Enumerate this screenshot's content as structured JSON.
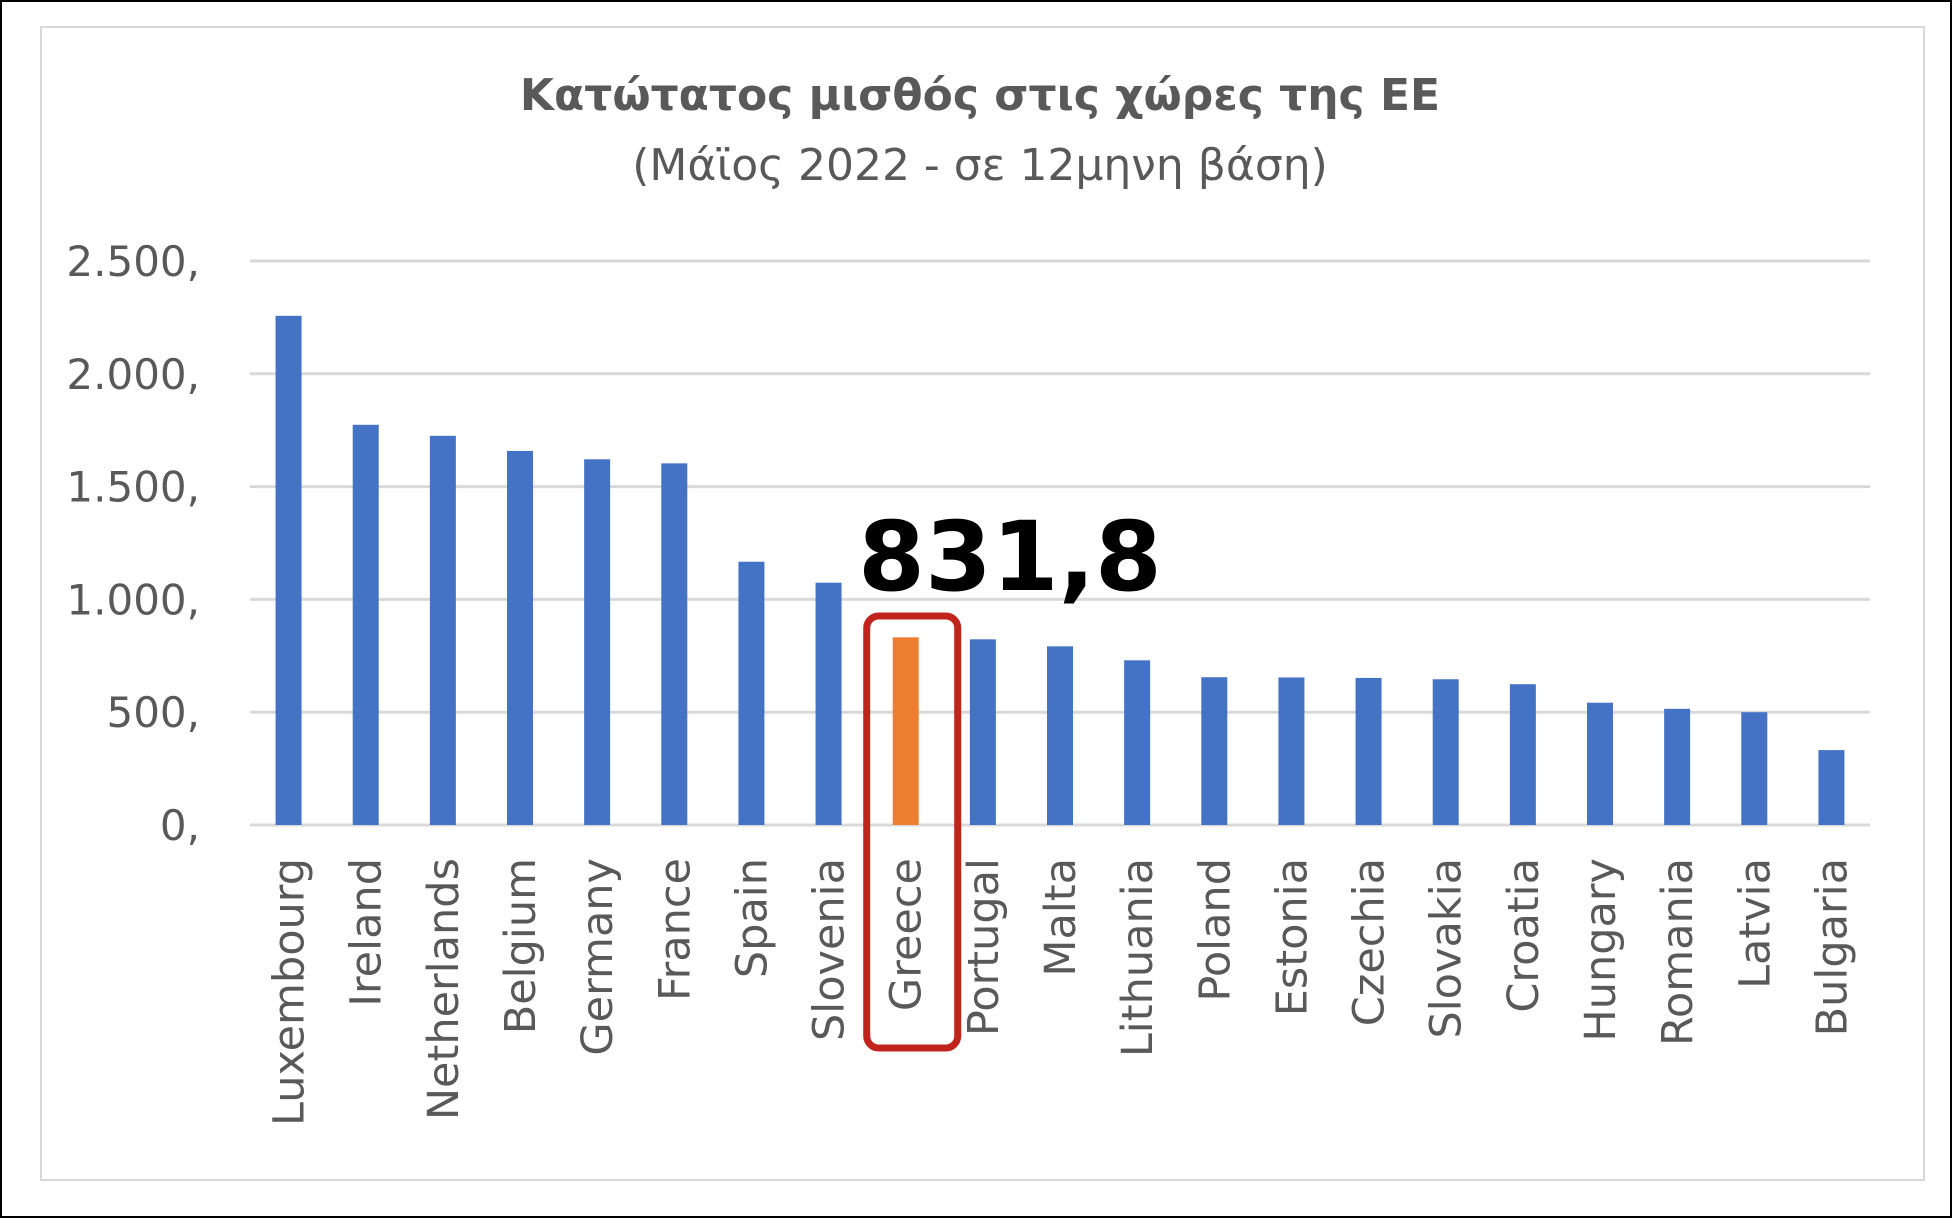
{
  "chart_data": {
    "type": "bar",
    "title": "Κατώτατος μισθός στις χώρες της ΕΕ",
    "subtitle": "(Μάϊος 2022 - σε 12μηνη βάση)",
    "xlabel": "",
    "ylabel": "",
    "ylim": [
      0,
      2500
    ],
    "yticks": [
      0,
      500,
      1000,
      1500,
      2000,
      2500
    ],
    "ytick_labels": [
      "0,",
      "500,",
      "1.000,",
      "1.500,",
      "2.000,",
      "2.500,"
    ],
    "grid": true,
    "legend": "none",
    "categories": [
      "Luxembourg",
      "Ireland",
      "Netherlands",
      "Belgium",
      "Germany",
      "France",
      "Spain",
      "Slovenia",
      "Greece",
      "Portugal",
      "Malta",
      "Lithuania",
      "Poland",
      "Estonia",
      "Czechia",
      "Slovakia",
      "Croatia",
      "Hungary",
      "Romania",
      "Latvia",
      "Bulgaria"
    ],
    "values": [
      2257,
      1774,
      1725,
      1658,
      1621,
      1603,
      1167,
      1074,
      831.8,
      823,
      792,
      730,
      655,
      654,
      652,
      646,
      624,
      542,
      515,
      500,
      332
    ],
    "highlight": {
      "category": "Greece",
      "label": "831,8"
    },
    "colors": {
      "bar": "#4472C4",
      "highlight_bar": "#ED7D31",
      "highlight_box": "#C0241C",
      "grid": "#D9D9D9",
      "text": "#595959"
    }
  }
}
